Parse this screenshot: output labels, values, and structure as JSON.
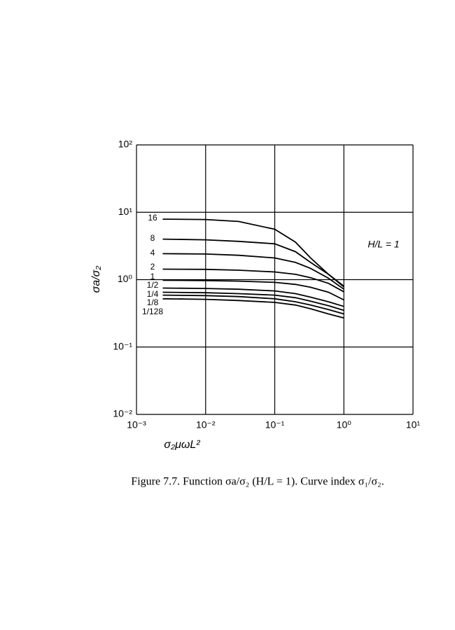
{
  "chart_data": {
    "type": "line",
    "x_label": "σ₂μωL²",
    "y_label": "σa/σ₂",
    "annotation": "H/L = 1",
    "caption": "Figure 7.7. Function σa/σ₂ (H/L = 1). Curve index σ₁/σ₂.",
    "log_x": true,
    "log_y": true,
    "grid": true,
    "color": "#000000",
    "xlim": [
      0.001,
      10
    ],
    "ylim": [
      0.01,
      100
    ],
    "xticks": [
      {
        "value": 0.001,
        "label": "10⁻³"
      },
      {
        "value": 0.01,
        "label": "10⁻²"
      },
      {
        "value": 0.1,
        "label": "10⁻¹"
      },
      {
        "value": 1,
        "label": "10⁰"
      },
      {
        "value": 10,
        "label": "10¹"
      }
    ],
    "yticks": [
      {
        "value": 0.01,
        "label": "10⁻²"
      },
      {
        "value": 0.1,
        "label": "10⁻¹"
      },
      {
        "value": 1,
        "label": "10⁰"
      },
      {
        "value": 10,
        "label": "10¹"
      },
      {
        "value": 100,
        "label": "10²"
      }
    ],
    "x": [
      0.0024,
      0.01,
      0.03,
      0.1,
      0.2,
      0.33,
      0.6,
      1
    ],
    "series": [
      {
        "name": "16",
        "values": [
          7.9,
          7.8,
          7.3,
          5.6,
          3.6,
          2.1,
          1.2,
          0.8
        ]
      },
      {
        "name": "8",
        "values": [
          4.0,
          3.9,
          3.7,
          3.4,
          2.6,
          1.8,
          1.2,
          0.78
        ]
      },
      {
        "name": "4",
        "values": [
          2.43,
          2.4,
          2.3,
          2.1,
          1.8,
          1.47,
          1.05,
          0.72
        ]
      },
      {
        "name": "2",
        "values": [
          1.43,
          1.42,
          1.38,
          1.3,
          1.2,
          1.07,
          0.88,
          0.66
        ]
      },
      {
        "name": "1",
        "values": [
          0.98,
          0.97,
          0.95,
          0.91,
          0.85,
          0.77,
          0.65,
          0.5
        ]
      },
      {
        "name": "1/2",
        "values": [
          0.75,
          0.74,
          0.72,
          0.68,
          0.62,
          0.55,
          0.47,
          0.4
        ]
      },
      {
        "name": "1/4",
        "values": [
          0.65,
          0.64,
          0.62,
          0.59,
          0.54,
          0.48,
          0.41,
          0.35
        ]
      },
      {
        "name": "1/8",
        "values": [
          0.59,
          0.58,
          0.56,
          0.52,
          0.47,
          0.42,
          0.36,
          0.31
        ]
      },
      {
        "name": "1/128",
        "values": [
          0.52,
          0.51,
          0.49,
          0.46,
          0.42,
          0.37,
          0.31,
          0.27
        ]
      }
    ]
  }
}
